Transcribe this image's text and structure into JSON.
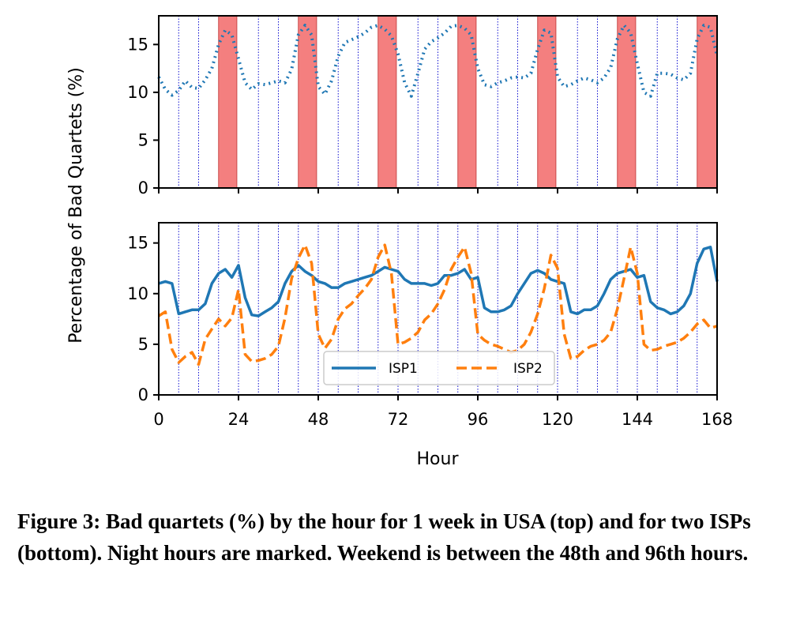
{
  "chart_data": [
    {
      "type": "line",
      "ylabel": "Percentage of Bad Quartets (%)",
      "xlim": [
        0,
        168
      ],
      "ylim": [
        0,
        18
      ],
      "yticks": [
        0,
        5,
        10,
        15
      ],
      "xticks": [
        0,
        24,
        48,
        72,
        96,
        120,
        144,
        168
      ],
      "show_xtick_labels": false,
      "night_hours_marked": [
        6,
        12,
        30,
        36,
        54,
        60,
        78,
        84,
        102,
        108,
        126,
        132,
        150,
        156
      ],
      "shaded_intervals": [
        [
          18,
          23.5
        ],
        [
          42,
          47.5
        ],
        [
          66,
          71.5
        ],
        [
          90,
          95.5
        ],
        [
          114,
          119.5
        ],
        [
          138,
          143.5
        ],
        [
          162,
          168
        ]
      ],
      "shade_color": "#f47f7f",
      "series": [
        {
          "style": "dotted",
          "color": "#1f77b4",
          "x": [
            0,
            2,
            4,
            6,
            8,
            10,
            12,
            14,
            16,
            18,
            20,
            22,
            24,
            26,
            28,
            30,
            32,
            34,
            36,
            38,
            40,
            42,
            44,
            46,
            48,
            50,
            52,
            54,
            56,
            58,
            60,
            62,
            64,
            66,
            68,
            70,
            72,
            74,
            76,
            78,
            80,
            82,
            84,
            86,
            88,
            90,
            92,
            94,
            96,
            98,
            100,
            102,
            104,
            106,
            108,
            110,
            112,
            114,
            116,
            118,
            120,
            122,
            124,
            126,
            128,
            130,
            132,
            134,
            136,
            138,
            140,
            142,
            144,
            146,
            148,
            150,
            152,
            154,
            156,
            158,
            160,
            162,
            164,
            166,
            168
          ],
          "values": [
            11.6,
            10.3,
            9.7,
            10.2,
            11.2,
            10.5,
            10.4,
            11.3,
            12.5,
            15.0,
            16.5,
            16.0,
            13.5,
            11.0,
            10.3,
            10.9,
            10.8,
            11.0,
            11.2,
            11.0,
            12.4,
            16.0,
            17.0,
            16.0,
            10.6,
            9.8,
            11.2,
            13.8,
            15.2,
            15.5,
            15.8,
            16.2,
            16.8,
            17.0,
            16.6,
            15.9,
            14.0,
            11.0,
            9.6,
            12.0,
            14.5,
            15.3,
            15.7,
            16.2,
            16.9,
            17.0,
            16.7,
            16.0,
            12.5,
            10.8,
            10.6,
            11.0,
            11.2,
            11.5,
            11.6,
            11.5,
            12.0,
            14.5,
            16.5,
            16.2,
            11.6,
            10.6,
            10.8,
            11.2,
            11.5,
            11.3,
            11.0,
            11.5,
            12.6,
            15.6,
            17.0,
            16.2,
            13.0,
            10.0,
            9.6,
            12.0,
            12.0,
            11.9,
            11.5,
            11.3,
            12.0,
            15.6,
            17.0,
            16.8,
            13.8
          ]
        }
      ]
    },
    {
      "type": "line",
      "xlabel": "Hour",
      "xlim": [
        0,
        168
      ],
      "ylim": [
        0,
        17
      ],
      "yticks": [
        0,
        5,
        10,
        15
      ],
      "xticks": [
        0,
        24,
        48,
        72,
        96,
        120,
        144,
        168
      ],
      "night_hours_marked": [
        6,
        12,
        18,
        24,
        30,
        36,
        42,
        48,
        54,
        60,
        66,
        72,
        78,
        84,
        90,
        96,
        102,
        108,
        114,
        120,
        126,
        132,
        138,
        144,
        150,
        156,
        162
      ],
      "legend_position": "lower center",
      "series": [
        {
          "name": "ISP1",
          "style": "solid",
          "color": "#1f77b4",
          "x": [
            0,
            2,
            4,
            6,
            8,
            10,
            12,
            14,
            16,
            18,
            20,
            22,
            24,
            26,
            28,
            30,
            32,
            34,
            36,
            38,
            40,
            42,
            44,
            46,
            48,
            50,
            52,
            54,
            56,
            58,
            60,
            62,
            64,
            66,
            68,
            70,
            72,
            74,
            76,
            78,
            80,
            82,
            84,
            86,
            88,
            90,
            92,
            94,
            96,
            98,
            100,
            102,
            104,
            106,
            108,
            110,
            112,
            114,
            116,
            118,
            120,
            122,
            124,
            126,
            128,
            130,
            132,
            134,
            136,
            138,
            140,
            142,
            144,
            146,
            148,
            150,
            152,
            154,
            156,
            158,
            160,
            162,
            164,
            166,
            168
          ],
          "values": [
            11.0,
            11.2,
            11.0,
            8.0,
            8.2,
            8.4,
            8.4,
            9.0,
            11.0,
            12.0,
            12.4,
            11.6,
            12.8,
            9.6,
            7.9,
            7.8,
            8.2,
            8.6,
            9.2,
            11.0,
            12.2,
            12.8,
            12.2,
            11.8,
            11.2,
            11.0,
            10.6,
            10.6,
            11.0,
            11.2,
            11.4,
            11.6,
            11.8,
            12.2,
            12.6,
            12.4,
            12.2,
            11.4,
            11.0,
            11.0,
            11.0,
            10.8,
            11.0,
            11.8,
            11.8,
            12.0,
            12.4,
            11.4,
            11.6,
            8.6,
            8.2,
            8.2,
            8.4,
            8.8,
            10.0,
            11.0,
            12.0,
            12.3,
            12.0,
            11.4,
            11.2,
            11.0,
            8.2,
            8.0,
            8.4,
            8.4,
            8.8,
            10.0,
            11.4,
            12.0,
            12.2,
            12.4,
            11.6,
            11.8,
            9.2,
            8.6,
            8.4,
            8.0,
            8.2,
            8.8,
            10.0,
            13.0,
            14.4,
            14.6,
            11.2
          ]
        },
        {
          "name": "ISP2",
          "style": "dashed",
          "color": "#ff7f0e",
          "x": [
            0,
            2,
            4,
            6,
            8,
            10,
            12,
            14,
            16,
            18,
            20,
            22,
            24,
            26,
            28,
            30,
            32,
            34,
            36,
            38,
            40,
            42,
            44,
            46,
            48,
            50,
            52,
            54,
            56,
            58,
            60,
            62,
            64,
            66,
            68,
            70,
            72,
            74,
            76,
            78,
            80,
            82,
            84,
            86,
            88,
            90,
            92,
            94,
            96,
            98,
            100,
            102,
            104,
            106,
            108,
            110,
            112,
            114,
            116,
            118,
            120,
            122,
            124,
            126,
            128,
            130,
            132,
            134,
            136,
            138,
            140,
            142,
            144,
            146,
            148,
            150,
            152,
            154,
            156,
            158,
            160,
            162,
            164,
            166,
            168
          ],
          "values": [
            7.8,
            8.2,
            4.5,
            3.2,
            3.8,
            4.2,
            3.0,
            5.5,
            6.5,
            7.5,
            6.8,
            7.6,
            10.4,
            4.0,
            3.3,
            3.4,
            3.6,
            4.0,
            4.8,
            7.6,
            11.5,
            13.5,
            14.8,
            13.0,
            6.0,
            4.6,
            5.5,
            7.5,
            8.5,
            9.0,
            9.8,
            10.5,
            11.4,
            13.6,
            14.8,
            12.0,
            5.0,
            5.2,
            5.6,
            6.2,
            7.4,
            8.0,
            9.0,
            10.4,
            12.4,
            13.6,
            14.6,
            12.0,
            6.0,
            5.4,
            5.0,
            4.8,
            4.5,
            4.2,
            4.4,
            5.0,
            6.2,
            8.0,
            10.5,
            13.8,
            12.5,
            6.0,
            3.6,
            3.8,
            4.4,
            4.8,
            5.0,
            5.4,
            6.2,
            8.5,
            11.5,
            14.6,
            12.0,
            5.0,
            4.4,
            4.5,
            4.8,
            5.0,
            5.2,
            5.6,
            6.2,
            7.0,
            7.4,
            6.6,
            6.8
          ]
        }
      ]
    }
  ],
  "caption": "Figure 3: Bad quartets (%) by the hour for 1 week in USA (top) and for two ISPs (bottom). Night hours are marked. Weekend is between the 48th and 96th hours."
}
